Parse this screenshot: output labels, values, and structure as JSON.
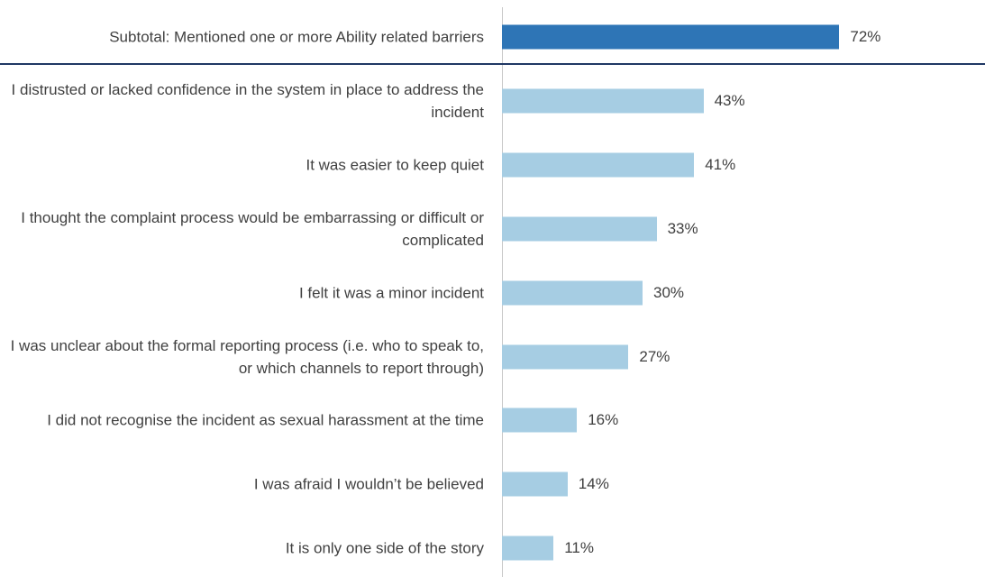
{
  "chart_data": {
    "type": "barh",
    "categories": [
      "Subtotal: Mentioned one or more Ability related barriers",
      "I distrusted or lacked confidence in the system in place to address the incident",
      "It was easier to keep quiet",
      "I thought the complaint process would be embarrassing or difficult or complicated",
      "I felt it was a minor incident",
      "I was unclear about the formal reporting process (i.e. who to speak to, or which channels to report through)",
      "I did not recognise the incident as sexual harassment at the time",
      "I was afraid I wouldn’t be believed",
      "It is only one side of the story"
    ],
    "values": [
      72,
      43,
      41,
      33,
      30,
      27,
      16,
      14,
      11
    ],
    "value_labels": [
      "72%",
      "43%",
      "41%",
      "33%",
      "30%",
      "27%",
      "16%",
      "14%",
      "11%"
    ],
    "colors": [
      "#2e75b6",
      "#a6cde3",
      "#a6cde3",
      "#a6cde3",
      "#a6cde3",
      "#a6cde3",
      "#a6cde3",
      "#a6cde3",
      "#a6cde3"
    ]
  }
}
